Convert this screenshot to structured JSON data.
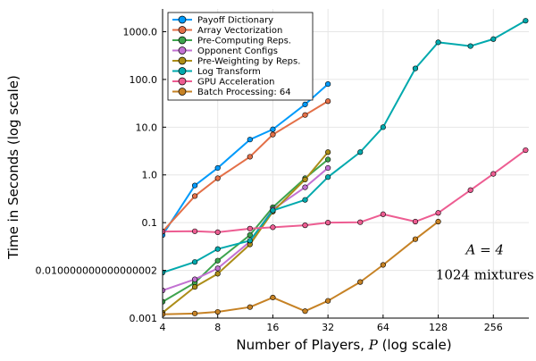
{
  "chart_data": {
    "type": "line",
    "xscale": "log2",
    "yscale": "log10",
    "xlabel_prefix": "Number of Players, ",
    "xlabel_var": "P",
    "xlabel_suffix": " (log scale)",
    "ylabel": "Time in Seconds (log scale)",
    "xlim": [
      4,
      400
    ],
    "ylim": [
      0.001,
      3000
    ],
    "x_ticks": [
      {
        "value": 4,
        "label": "4"
      },
      {
        "value": 8,
        "label": "8"
      },
      {
        "value": 16,
        "label": "16"
      },
      {
        "value": 32,
        "label": "32"
      },
      {
        "value": 64,
        "label": "64"
      },
      {
        "value": 128,
        "label": "128"
      },
      {
        "value": 256,
        "label": "256"
      }
    ],
    "y_ticks": [
      {
        "value": 0.001,
        "label": "0.001"
      },
      {
        "value": 0.01,
        "label": "0.010000000000000002"
      },
      {
        "value": 0.1,
        "label": "0.1"
      },
      {
        "value": 1,
        "label": "1.0"
      },
      {
        "value": 10,
        "label": "10.0"
      },
      {
        "value": 100,
        "label": "100.0"
      },
      {
        "value": 1000,
        "label": "1000.0"
      }
    ],
    "grid": true,
    "legend_position": "top-left",
    "annotations": [
      {
        "text": "A = 4",
        "style": "math",
        "x": 230,
        "y": 0.022
      },
      {
        "text": "1024 mixtures",
        "style": "text",
        "x": 230,
        "y": 0.0065
      }
    ],
    "series": [
      {
        "name": "Payoff Dictionary",
        "color": "#009AFA",
        "x": [
          4,
          6,
          8,
          12,
          16,
          24,
          32
        ],
        "y": [
          0.055,
          0.6,
          1.4,
          5.5,
          9,
          30,
          80
        ]
      },
      {
        "name": "Array Vectorization",
        "color": "#E36F47",
        "x": [
          4,
          6,
          8,
          12,
          16,
          24,
          32
        ],
        "y": [
          0.065,
          0.36,
          0.85,
          2.4,
          7,
          18,
          35
        ]
      },
      {
        "name": "Pre-Computing Reps.",
        "color": "#3EA44E",
        "x": [
          4,
          6,
          8,
          12,
          16,
          24,
          32
        ],
        "y": [
          0.0022,
          0.0055,
          0.016,
          0.055,
          0.21,
          0.85,
          2.1
        ]
      },
      {
        "name": "Opponent Configs",
        "color": "#C271D2",
        "x": [
          4,
          6,
          8,
          12,
          16,
          24,
          32
        ],
        "y": [
          0.0038,
          0.0065,
          0.011,
          0.04,
          0.19,
          0.55,
          1.4
        ]
      },
      {
        "name": "Pre-Weighting by Reps.",
        "color": "#AC8D18",
        "x": [
          4,
          6,
          8,
          12,
          16,
          24,
          32
        ],
        "y": [
          0.0013,
          0.0045,
          0.0085,
          0.035,
          0.17,
          0.8,
          3
        ]
      },
      {
        "name": "Log Transform",
        "color": "#00A9AD",
        "x": [
          4,
          6,
          8,
          12,
          16,
          24,
          32,
          48,
          64,
          96,
          128,
          192,
          256,
          384
        ],
        "y": [
          0.009,
          0.015,
          0.028,
          0.042,
          0.18,
          0.3,
          0.9,
          3,
          10,
          170,
          600,
          500,
          700,
          1700
        ]
      },
      {
        "name": "GPU Acceleration",
        "color": "#ED5D92",
        "x": [
          4,
          6,
          8,
          12,
          16,
          24,
          32,
          48,
          64,
          96,
          128,
          192,
          256,
          384
        ],
        "y": [
          0.065,
          0.066,
          0.063,
          0.075,
          0.08,
          0.088,
          0.1,
          0.102,
          0.15,
          0.105,
          0.16,
          0.48,
          1.05,
          3.3
        ]
      },
      {
        "name": "Batch Processing: 64",
        "color": "#C68225",
        "x": [
          4,
          6,
          8,
          12,
          16,
          24,
          32,
          48,
          64,
          96,
          128
        ],
        "y": [
          0.0012,
          0.00125,
          0.00135,
          0.0017,
          0.0027,
          0.0014,
          0.0023,
          0.0057,
          0.013,
          0.045,
          0.105
        ]
      }
    ]
  }
}
